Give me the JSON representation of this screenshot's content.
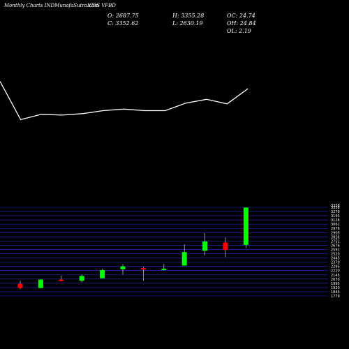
{
  "header": {
    "site": "Monthly Charts INDMunafaSutra.com",
    "symbol": "ICES VFBD"
  },
  "ohlc": {
    "O": "O: 2687.75",
    "H": "H: 3355.28",
    "OC": "OC: 24.74",
    "C": "C: 3352.62",
    "L": "L: 2630.19",
    "OH": "OH: 24.84",
    "OL": "OL: 2.19"
  },
  "colors": {
    "up": "#00ff00",
    "down": "#ff0000",
    "grid": "#2b2bd6",
    "line": "#ffffff",
    "bg": "#000000"
  },
  "chart_data": [
    {
      "type": "line",
      "description_free": true,
      "values": [
        3290,
        2780,
        2850,
        2840,
        2860,
        2900,
        2920,
        2900,
        2900,
        3000,
        3050,
        2990,
        3190
      ]
    },
    {
      "type": "candlestick",
      "ylim": [
        1779,
        3358
      ],
      "y_ticks": [
        "3358",
        "3279",
        "3195",
        "3128",
        "3061",
        "2976",
        "2905",
        "2826",
        "2751",
        "2676",
        "2591",
        "2520",
        "2445",
        "2370",
        "2295",
        "2220",
        "2145",
        "2070",
        "1995",
        "1920",
        "1845",
        "1779"
      ],
      "top_label": "3358",
      "candles": [
        {
          "open": 1995,
          "high": 2050,
          "low": 1900,
          "close": 1920
        },
        {
          "open": 1920,
          "high": 2075,
          "low": 1920,
          "close": 2070
        },
        {
          "open": 2070,
          "high": 2140,
          "low": 2040,
          "close": 2050
        },
        {
          "open": 2050,
          "high": 2160,
          "low": 2020,
          "close": 2135
        },
        {
          "open": 2095,
          "high": 2260,
          "low": 2095,
          "close": 2240
        },
        {
          "open": 2255,
          "high": 2345,
          "low": 2160,
          "close": 2305
        },
        {
          "open": 2275,
          "high": 2295,
          "low": 2050,
          "close": 2260
        },
        {
          "open": 2250,
          "high": 2350,
          "low": 2235,
          "close": 2265
        },
        {
          "open": 2320,
          "high": 2700,
          "low": 2320,
          "close": 2560
        },
        {
          "open": 2585,
          "high": 2900,
          "low": 2500,
          "close": 2750
        },
        {
          "open": 2730,
          "high": 2820,
          "low": 2470,
          "close": 2600
        },
        {
          "open": 2687.75,
          "high": 3355.28,
          "low": 2630.19,
          "close": 3352.62
        }
      ]
    }
  ]
}
